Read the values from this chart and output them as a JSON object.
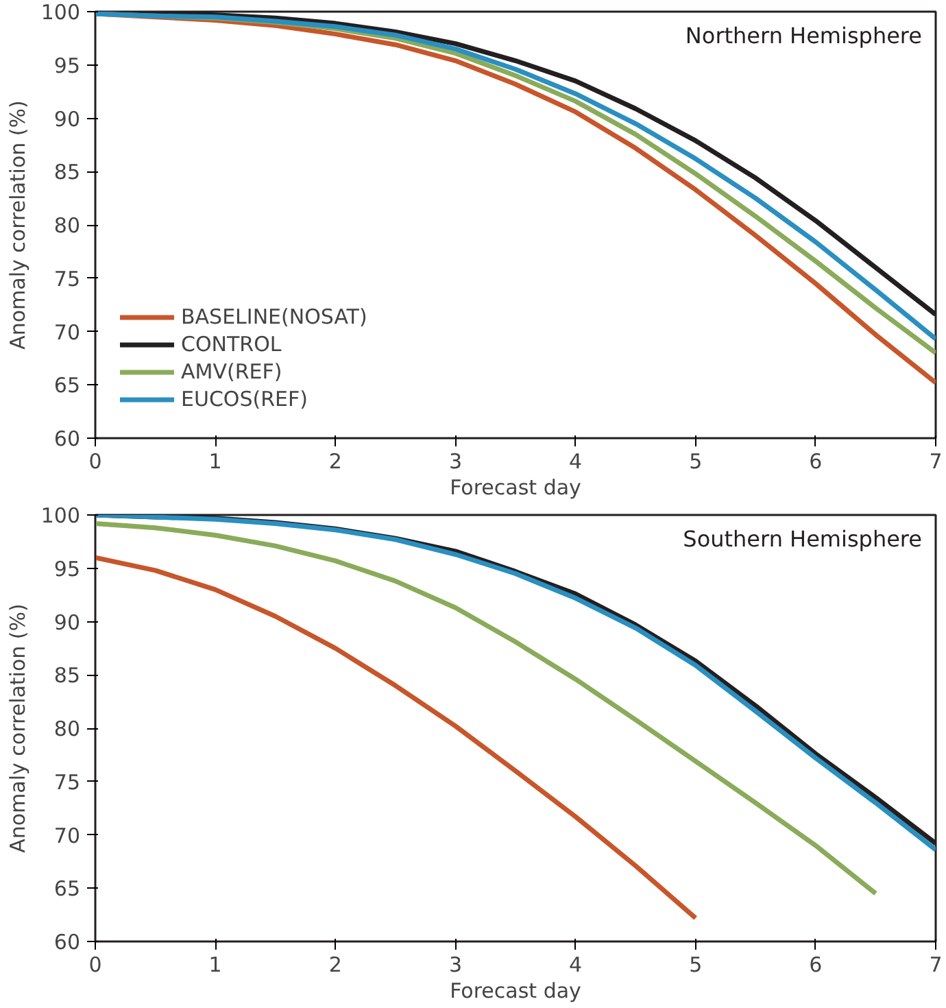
{
  "chart_data": [
    {
      "type": "line",
      "xlabel": "Forecast day",
      "ylabel": "Anomaly correlation (%)",
      "annotations": [
        "Northern Hemisphere"
      ],
      "x": [
        0,
        0.5,
        1,
        1.5,
        2,
        2.5,
        3,
        3.5,
        4,
        4.5,
        5,
        5.5,
        6,
        6.5,
        7
      ],
      "xlim": [
        0,
        7
      ],
      "xticks": [
        0,
        1,
        2,
        3,
        4,
        5,
        6,
        7
      ],
      "ylim": [
        60,
        100
      ],
      "yticks": [
        60,
        65,
        70,
        75,
        80,
        85,
        90,
        95,
        100
      ],
      "grid": false,
      "legend": "bottom left",
      "line_style": "solid",
      "series": [
        {
          "name": "BASELINE(NOSAT)",
          "color": "#c8562b",
          "values": [
            99.8,
            99.5,
            99.2,
            98.7,
            97.9,
            96.9,
            95.4,
            93.2,
            90.6,
            87.2,
            83.3,
            79.0,
            74.5,
            69.7,
            65.2
          ]
        },
        {
          "name": "CONTROL",
          "color": "#231f20",
          "values": [
            100,
            99.9,
            99.7,
            99.4,
            98.9,
            98.1,
            97.0,
            95.4,
            93.5,
            90.9,
            87.9,
            84.4,
            80.4,
            76.0,
            71.6
          ]
        },
        {
          "name": "AMV(REF)",
          "color": "#8aab5a",
          "values": [
            99.8,
            99.6,
            99.4,
            99.0,
            98.4,
            97.5,
            96.1,
            94.0,
            91.6,
            88.5,
            84.8,
            80.8,
            76.6,
            72.2,
            68.0
          ]
        },
        {
          "name": "EUCOS(REF)",
          "color": "#2a8fc1",
          "values": [
            99.8,
            99.6,
            99.5,
            99.1,
            98.6,
            97.8,
            96.5,
            94.6,
            92.3,
            89.5,
            86.2,
            82.5,
            78.4,
            73.9,
            69.3
          ]
        }
      ]
    },
    {
      "type": "line",
      "xlabel": "Forecast day",
      "ylabel": "Anomaly correlation (%)",
      "annotations": [
        "Southern Hemisphere"
      ],
      "x": [
        0,
        0.5,
        1,
        1.5,
        2,
        2.5,
        3,
        3.5,
        4,
        4.5,
        5,
        5.5,
        6,
        6.5,
        7
      ],
      "xlim": [
        0,
        7
      ],
      "xticks": [
        0,
        1,
        2,
        3,
        4,
        5,
        6,
        7
      ],
      "ylim": [
        60,
        100
      ],
      "yticks": [
        60,
        65,
        70,
        75,
        80,
        85,
        90,
        95,
        100
      ],
      "grid": false,
      "line_style": "solid",
      "series": [
        {
          "color": "#c8562b",
          "values": [
            96.0,
            94.8,
            93.0,
            90.5,
            87.5,
            84.0,
            80.2,
            76.0,
            71.7,
            67.1,
            62.2,
            null,
            null,
            null,
            null
          ]
        },
        {
          "color": "#231f20",
          "values": [
            100,
            99.8,
            99.7,
            99.3,
            98.7,
            97.8,
            96.6,
            94.7,
            92.6,
            89.7,
            86.3,
            82.1,
            77.6,
            73.5,
            69.2
          ]
        },
        {
          "color": "#8aab5a",
          "values": [
            99.2,
            98.8,
            98.1,
            97.1,
            95.7,
            93.8,
            91.3,
            88.1,
            84.6,
            80.8,
            76.9,
            73.0,
            69.0,
            64.5,
            null
          ]
        },
        {
          "color": "#2a8fc1",
          "values": [
            100,
            99.8,
            99.6,
            99.2,
            98.6,
            97.7,
            96.3,
            94.5,
            92.2,
            89.4,
            85.9,
            81.6,
            77.2,
            73.0,
            68.6
          ]
        }
      ]
    }
  ]
}
